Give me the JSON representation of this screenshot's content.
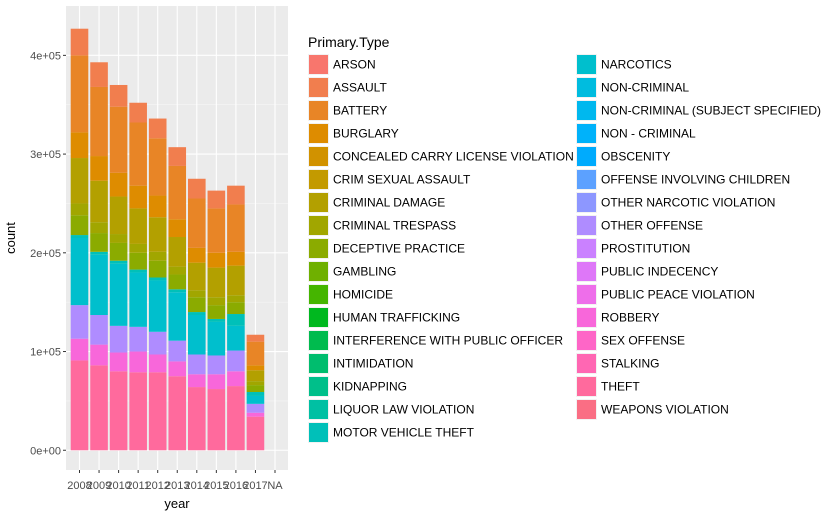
{
  "chart_data": {
    "type": "bar",
    "stacked": true,
    "xlabel": "year",
    "ylabel": "count",
    "categories": [
      "2008",
      "2009",
      "2010",
      "2011",
      "2012",
      "2013",
      "2014",
      "2015",
      "2016",
      "2017",
      "NA"
    ],
    "yticks": [
      {
        "value": 0,
        "label": "0e+00"
      },
      {
        "value": 100000,
        "label": "1e+05"
      },
      {
        "value": 200000,
        "label": "2e+05"
      },
      {
        "value": 300000,
        "label": "3e+05"
      },
      {
        "value": 400000,
        "label": "4e+05"
      }
    ],
    "ylim": [
      -20000,
      450000
    ],
    "grid": true,
    "legend": {
      "title": "Primary.Type",
      "placement": "right",
      "entries": [
        {
          "name": "ARSON",
          "color": "#F8766D"
        },
        {
          "name": "ASSAULT",
          "color": "#F17E4E"
        },
        {
          "name": "BATTERY",
          "color": "#E88526"
        },
        {
          "name": "BURGLARY",
          "color": "#DE8C00"
        },
        {
          "name": "CONCEALED CARRY LICENSE VIOLATION",
          "color": "#D19200"
        },
        {
          "name": "CRIM SEXUAL ASSAULT",
          "color": "#C39A00"
        },
        {
          "name": "CRIMINAL DAMAGE",
          "color": "#B3A000"
        },
        {
          "name": "CRIMINAL TRESPASS",
          "color": "#A1A600"
        },
        {
          "name": "DECEPTIVE PRACTICE",
          "color": "#8BAB00"
        },
        {
          "name": "GAMBLING",
          "color": "#6FB000"
        },
        {
          "name": "HOMICIDE",
          "color": "#45B500"
        },
        {
          "name": "HUMAN TRAFFICKING",
          "color": "#00B81F"
        },
        {
          "name": "INTERFERENCE WITH PUBLIC OFFICER",
          "color": "#00BB4E"
        },
        {
          "name": "INTIMIDATION",
          "color": "#00BD6E"
        },
        {
          "name": "KIDNAPPING",
          "color": "#00BF8A"
        },
        {
          "name": "LIQUOR LAW VIOLATION",
          "color": "#00C0A3"
        },
        {
          "name": "MOTOR VEHICLE THEFT",
          "color": "#00C0B9"
        },
        {
          "name": "NARCOTICS",
          "color": "#00BFCD"
        },
        {
          "name": "NON-CRIMINAL",
          "color": "#00BCDF"
        },
        {
          "name": "NON-CRIMINAL (SUBJECT SPECIFIED)",
          "color": "#00B8EE"
        },
        {
          "name": "NON - CRIMINAL",
          "color": "#00B2FA"
        },
        {
          "name": "OBSCENITY",
          "color": "#00ABFD"
        },
        {
          "name": "OFFENSE INVOLVING CHILDREN",
          "color": "#5CA1FF"
        },
        {
          "name": "OTHER NARCOTIC VIOLATION",
          "color": "#8D97FF"
        },
        {
          "name": "OTHER OFFENSE",
          "color": "#AF8CFF"
        },
        {
          "name": "PROSTITUTION",
          "color": "#CA81FF"
        },
        {
          "name": "PUBLIC INDECENCY",
          "color": "#DE77F8"
        },
        {
          "name": "PUBLIC PEACE VIOLATION",
          "color": "#EE6EEA"
        },
        {
          "name": "ROBBERY",
          "color": "#F867DA"
        },
        {
          "name": "SEX OFFENSE",
          "color": "#FE66C7"
        },
        {
          "name": "STALKING",
          "color": "#FF67B3"
        },
        {
          "name": "THEFT",
          "color": "#FF6A9D"
        },
        {
          "name": "WEAPONS VIOLATION",
          "color": "#FA6E84"
        }
      ]
    },
    "totals": [
      427000,
      393000,
      370000,
      352000,
      336000,
      307000,
      275000,
      263000,
      268000,
      117000,
      0
    ],
    "segments": [
      {
        "year": "2008",
        "bands": [
          {
            "type": "THEFT",
            "from": 0,
            "to": 91000
          },
          {
            "type": "ROBBERY",
            "from": 91000,
            "to": 113000
          },
          {
            "type": "OTHER OFFENSE",
            "from": 113000,
            "to": 147000
          },
          {
            "type": "NARCOTICS",
            "from": 147000,
            "to": 215000
          },
          {
            "type": "MOTOR VEHICLE THEFT",
            "from": 215000,
            "to": 218000
          },
          {
            "type": "DECEPTIVE PRACTICE",
            "from": 218000,
            "to": 238000
          },
          {
            "type": "CRIMINAL TRESPASS",
            "from": 238000,
            "to": 250000
          },
          {
            "type": "CRIMINAL DAMAGE",
            "from": 250000,
            "to": 296000
          },
          {
            "type": "BURGLARY",
            "from": 296000,
            "to": 322000
          },
          {
            "type": "BATTERY",
            "from": 322000,
            "to": 400000
          },
          {
            "type": "ASSAULT",
            "from": 400000,
            "to": 427000
          }
        ]
      },
      {
        "year": "2009",
        "bands": [
          {
            "type": "THEFT",
            "from": 0,
            "to": 86000
          },
          {
            "type": "ROBBERY",
            "from": 86000,
            "to": 107000
          },
          {
            "type": "OTHER OFFENSE",
            "from": 107000,
            "to": 137000
          },
          {
            "type": "NARCOTICS",
            "from": 137000,
            "to": 198000
          },
          {
            "type": "MOTOR VEHICLE THEFT",
            "from": 198000,
            "to": 201000
          },
          {
            "type": "DECEPTIVE PRACTICE",
            "from": 201000,
            "to": 220000
          },
          {
            "type": "CRIMINAL TRESPASS",
            "from": 220000,
            "to": 231000
          },
          {
            "type": "CRIMINAL DAMAGE",
            "from": 231000,
            "to": 273000
          },
          {
            "type": "BURGLARY",
            "from": 273000,
            "to": 298000
          },
          {
            "type": "BATTERY",
            "from": 298000,
            "to": 368000
          },
          {
            "type": "ASSAULT",
            "from": 368000,
            "to": 393000
          }
        ]
      },
      {
        "year": "2010",
        "bands": [
          {
            "type": "THEFT",
            "from": 0,
            "to": 80000
          },
          {
            "type": "ROBBERY",
            "from": 80000,
            "to": 99000
          },
          {
            "type": "OTHER OFFENSE",
            "from": 99000,
            "to": 126000
          },
          {
            "type": "NARCOTICS",
            "from": 126000,
            "to": 189000
          },
          {
            "type": "MOTOR VEHICLE THEFT",
            "from": 189000,
            "to": 192000
          },
          {
            "type": "DECEPTIVE PRACTICE",
            "from": 192000,
            "to": 210000
          },
          {
            "type": "CRIMINAL TRESPASS",
            "from": 210000,
            "to": 219000
          },
          {
            "type": "CRIMINAL DAMAGE",
            "from": 219000,
            "to": 257000
          },
          {
            "type": "BURGLARY",
            "from": 257000,
            "to": 281000
          },
          {
            "type": "BATTERY",
            "from": 281000,
            "to": 348000
          },
          {
            "type": "ASSAULT",
            "from": 348000,
            "to": 370000
          }
        ]
      },
      {
        "year": "2011",
        "bands": [
          {
            "type": "THEFT",
            "from": 0,
            "to": 79000
          },
          {
            "type": "ROBBERY",
            "from": 79000,
            "to": 100000
          },
          {
            "type": "OTHER OFFENSE",
            "from": 100000,
            "to": 125000
          },
          {
            "type": "NARCOTICS",
            "from": 125000,
            "to": 180000
          },
          {
            "type": "MOTOR VEHICLE THEFT",
            "from": 180000,
            "to": 183000
          },
          {
            "type": "DECEPTIVE PRACTICE",
            "from": 183000,
            "to": 200000
          },
          {
            "type": "CRIMINAL TRESPASS",
            "from": 200000,
            "to": 209000
          },
          {
            "type": "CRIMINAL DAMAGE",
            "from": 209000,
            "to": 245000
          },
          {
            "type": "BURGLARY",
            "from": 245000,
            "to": 268000
          },
          {
            "type": "BATTERY",
            "from": 268000,
            "to": 332000
          },
          {
            "type": "ASSAULT",
            "from": 332000,
            "to": 352000
          }
        ]
      },
      {
        "year": "2012",
        "bands": [
          {
            "type": "THEFT",
            "from": 0,
            "to": 79000
          },
          {
            "type": "ROBBERY",
            "from": 79000,
            "to": 97000
          },
          {
            "type": "OTHER OFFENSE",
            "from": 97000,
            "to": 120000
          },
          {
            "type": "NARCOTICS",
            "from": 120000,
            "to": 172000
          },
          {
            "type": "MOTOR VEHICLE THEFT",
            "from": 172000,
            "to": 175000
          },
          {
            "type": "DECEPTIVE PRACTICE",
            "from": 175000,
            "to": 192000
          },
          {
            "type": "CRIMINAL TRESPASS",
            "from": 192000,
            "to": 201000
          },
          {
            "type": "CRIMINAL DAMAGE",
            "from": 201000,
            "to": 236000
          },
          {
            "type": "BURGLARY",
            "from": 236000,
            "to": 258000
          },
          {
            "type": "BATTERY",
            "from": 258000,
            "to": 316000
          },
          {
            "type": "ASSAULT",
            "from": 316000,
            "to": 336000
          }
        ]
      },
      {
        "year": "2013",
        "bands": [
          {
            "type": "THEFT",
            "from": 0,
            "to": 75000
          },
          {
            "type": "ROBBERY",
            "from": 75000,
            "to": 90000
          },
          {
            "type": "OTHER OFFENSE",
            "from": 90000,
            "to": 111000
          },
          {
            "type": "NARCOTICS",
            "from": 111000,
            "to": 160000
          },
          {
            "type": "MOTOR VEHICLE THEFT",
            "from": 160000,
            "to": 163000
          },
          {
            "type": "DECEPTIVE PRACTICE",
            "from": 163000,
            "to": 178000
          },
          {
            "type": "CRIMINAL TRESPASS",
            "from": 178000,
            "to": 186000
          },
          {
            "type": "CRIMINAL DAMAGE",
            "from": 186000,
            "to": 216000
          },
          {
            "type": "BURGLARY",
            "from": 216000,
            "to": 234000
          },
          {
            "type": "BATTERY",
            "from": 234000,
            "to": 288000
          },
          {
            "type": "ASSAULT",
            "from": 288000,
            "to": 307000
          }
        ]
      },
      {
        "year": "2014",
        "bands": [
          {
            "type": "THEFT",
            "from": 0,
            "to": 64000
          },
          {
            "type": "ROBBERY",
            "from": 64000,
            "to": 77000
          },
          {
            "type": "OTHER OFFENSE",
            "from": 77000,
            "to": 97000
          },
          {
            "type": "NARCOTICS",
            "from": 97000,
            "to": 137000
          },
          {
            "type": "MOTOR VEHICLE THEFT",
            "from": 137000,
            "to": 140000
          },
          {
            "type": "DECEPTIVE PRACTICE",
            "from": 140000,
            "to": 155000
          },
          {
            "type": "CRIMINAL TRESPASS",
            "from": 155000,
            "to": 162000
          },
          {
            "type": "CRIMINAL DAMAGE",
            "from": 162000,
            "to": 190000
          },
          {
            "type": "BURGLARY",
            "from": 190000,
            "to": 205000
          },
          {
            "type": "BATTERY",
            "from": 205000,
            "to": 255000
          },
          {
            "type": "ASSAULT",
            "from": 255000,
            "to": 275000
          }
        ]
      },
      {
        "year": "2015",
        "bands": [
          {
            "type": "THEFT",
            "from": 0,
            "to": 62000
          },
          {
            "type": "ROBBERY",
            "from": 62000,
            "to": 77000
          },
          {
            "type": "OTHER OFFENSE",
            "from": 77000,
            "to": 96000
          },
          {
            "type": "NARCOTICS",
            "from": 96000,
            "to": 130000
          },
          {
            "type": "MOTOR VEHICLE THEFT",
            "from": 130000,
            "to": 133000
          },
          {
            "type": "DECEPTIVE PRACTICE",
            "from": 133000,
            "to": 147000
          },
          {
            "type": "CRIMINAL TRESPASS",
            "from": 147000,
            "to": 155000
          },
          {
            "type": "CRIMINAL DAMAGE",
            "from": 155000,
            "to": 185000
          },
          {
            "type": "BURGLARY",
            "from": 185000,
            "to": 200000
          },
          {
            "type": "BATTERY",
            "from": 200000,
            "to": 245000
          },
          {
            "type": "ASSAULT",
            "from": 245000,
            "to": 263000
          }
        ]
      },
      {
        "year": "2016",
        "bands": [
          {
            "type": "THEFT",
            "from": 0,
            "to": 65000
          },
          {
            "type": "ROBBERY",
            "from": 65000,
            "to": 80000
          },
          {
            "type": "OTHER OFFENSE",
            "from": 80000,
            "to": 101000
          },
          {
            "type": "NARCOTICS",
            "from": 101000,
            "to": 126000
          },
          {
            "type": "MOTOR VEHICLE THEFT",
            "from": 126000,
            "to": 138000
          },
          {
            "type": "DECEPTIVE PRACTICE",
            "from": 138000,
            "to": 150000
          },
          {
            "type": "CRIMINAL TRESPASS",
            "from": 150000,
            "to": 157000
          },
          {
            "type": "CRIMINAL DAMAGE",
            "from": 157000,
            "to": 187000
          },
          {
            "type": "BURGLARY",
            "from": 187000,
            "to": 201000
          },
          {
            "type": "BATTERY",
            "from": 201000,
            "to": 249000
          },
          {
            "type": "ASSAULT",
            "from": 249000,
            "to": 268000
          }
        ]
      },
      {
        "year": "2017",
        "bands": [
          {
            "type": "THEFT",
            "from": 0,
            "to": 34000
          },
          {
            "type": "ROBBERY",
            "from": 34000,
            "to": 38000
          },
          {
            "type": "OTHER OFFENSE",
            "from": 38000,
            "to": 47000
          },
          {
            "type": "NARCOTICS",
            "from": 47000,
            "to": 55000
          },
          {
            "type": "MOTOR VEHICLE THEFT",
            "from": 55000,
            "to": 59000
          },
          {
            "type": "DECEPTIVE PRACTICE",
            "from": 59000,
            "to": 66000
          },
          {
            "type": "CRIMINAL TRESPASS",
            "from": 66000,
            "to": 70000
          },
          {
            "type": "CRIMINAL DAMAGE",
            "from": 70000,
            "to": 81000
          },
          {
            "type": "BURGLARY",
            "from": 81000,
            "to": 86000
          },
          {
            "type": "BATTERY",
            "from": 86000,
            "to": 110000
          },
          {
            "type": "ASSAULT",
            "from": 110000,
            "to": 117000
          }
        ]
      }
    ]
  }
}
